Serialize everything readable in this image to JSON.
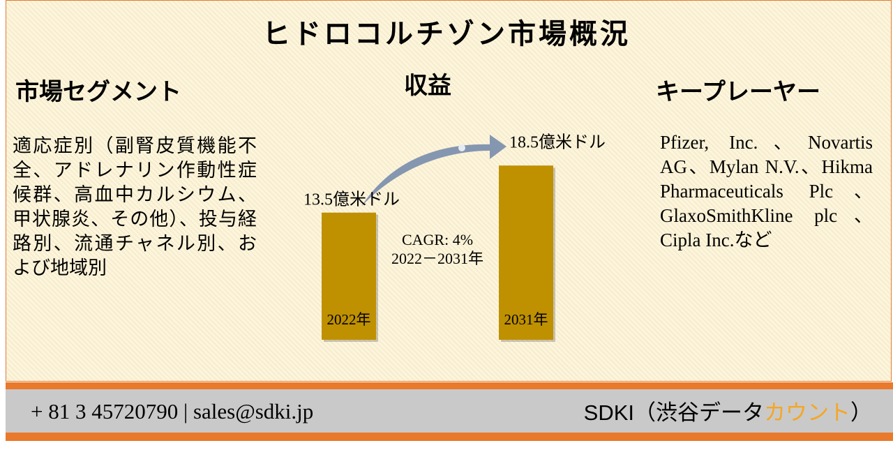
{
  "header": {
    "title": "ヒドロコルチゾン市場概況"
  },
  "segments": {
    "heading": "市場セグメント",
    "text": "適応症別（副腎皮質機能不全、アドレナリン作動性症候群、高血中カルシウム、甲状腺炎、その他）、投与経路別、流通チャネル別、および地域別"
  },
  "players": {
    "heading": "キープレーヤー",
    "text": "Pfizer, Inc.、Novartis AG、Mylan N.V.、Hikma Pharmaceuticals Plc、GlaxoSmithKline plc、Cipla Inc.など"
  },
  "chart_data": {
    "type": "bar",
    "title": "収益",
    "categories": [
      "2022年",
      "2031年"
    ],
    "values": [
      13.5,
      18.5
    ],
    "value_labels": [
      "13.5億米ドル",
      "18.5億米ドル"
    ],
    "color": "#bf9000",
    "annotations": [
      "CAGR: 4%",
      "2022－2031年"
    ]
  },
  "footer": {
    "contact": "+ 81 3 45720790 | sales@sdki.jp",
    "brand_start": "SDKI（渋谷データ",
    "brand_highlight": "カウント",
    "brand_end": "）"
  }
}
